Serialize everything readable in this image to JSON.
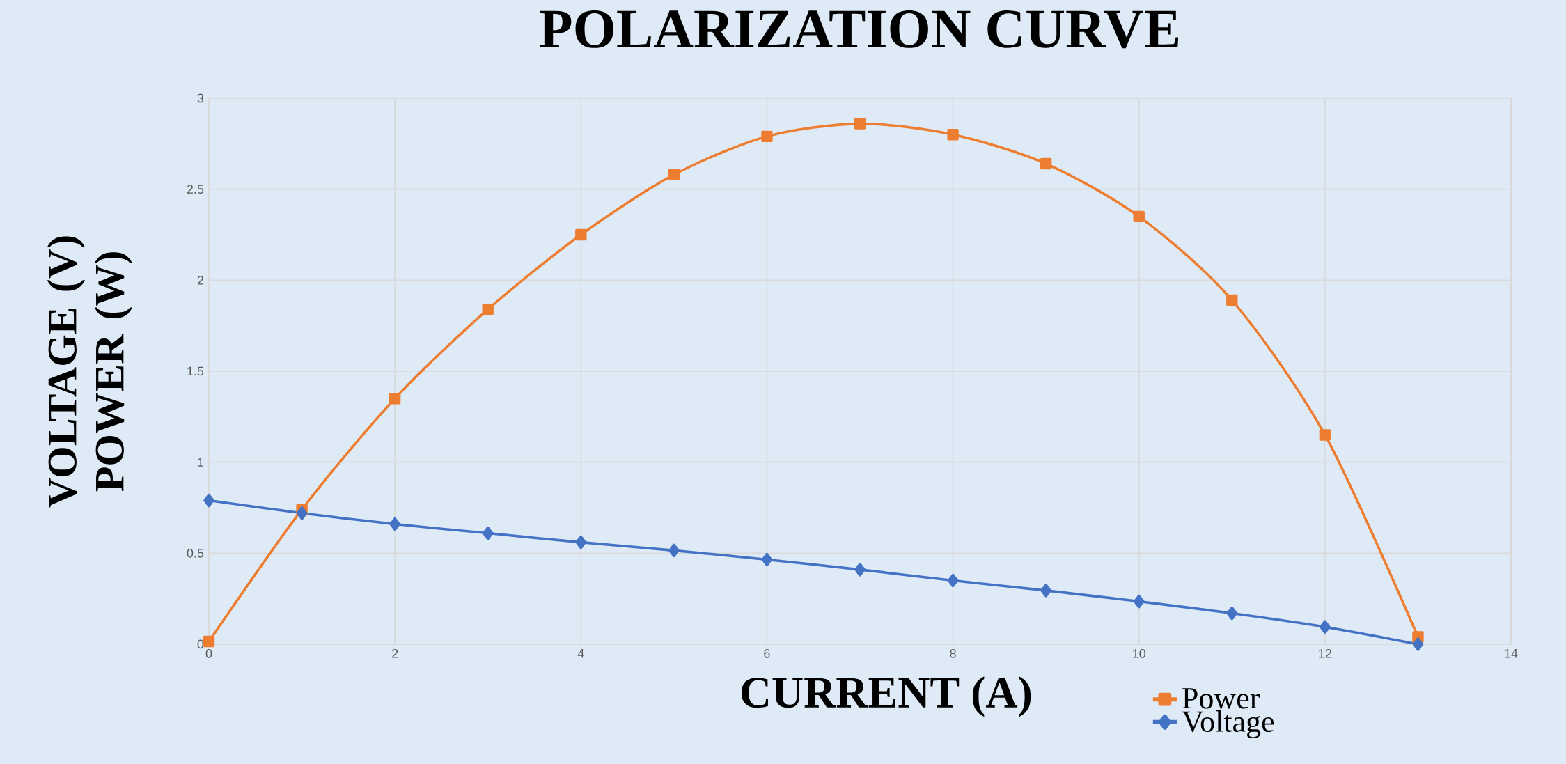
{
  "chart_data": {
    "type": "line",
    "title": "POLARIZATION CURVE",
    "xlabel": "CURRENT (A)",
    "ylabel": "VOLTAGE (V) POWER (W)",
    "x": [
      0,
      1,
      2,
      3,
      4,
      5,
      6,
      7,
      8,
      9,
      10,
      11,
      12,
      13
    ],
    "series": [
      {
        "name": "Power",
        "color": "#ed7d31",
        "marker": "square",
        "values": [
          0.015,
          0.74,
          1.35,
          1.84,
          2.25,
          2.58,
          2.79,
          2.86,
          2.8,
          2.64,
          2.35,
          1.89,
          1.15,
          0.04
        ]
      },
      {
        "name": "Voltage",
        "color": "#4472c4",
        "marker": "diamond",
        "values": [
          0.79,
          0.72,
          0.66,
          0.61,
          0.56,
          0.515,
          0.465,
          0.41,
          0.35,
          0.295,
          0.235,
          0.17,
          0.095,
          0.0
        ]
      }
    ],
    "xlim": [
      0,
      14
    ],
    "xticks": [
      0,
      2,
      4,
      6,
      8,
      10,
      12,
      14
    ],
    "ylim": [
      0,
      3
    ],
    "yticks": [
      0,
      0.5,
      1,
      1.5,
      2,
      2.5,
      3
    ],
    "grid": true,
    "legend": "bottom",
    "line_style": "solid"
  }
}
